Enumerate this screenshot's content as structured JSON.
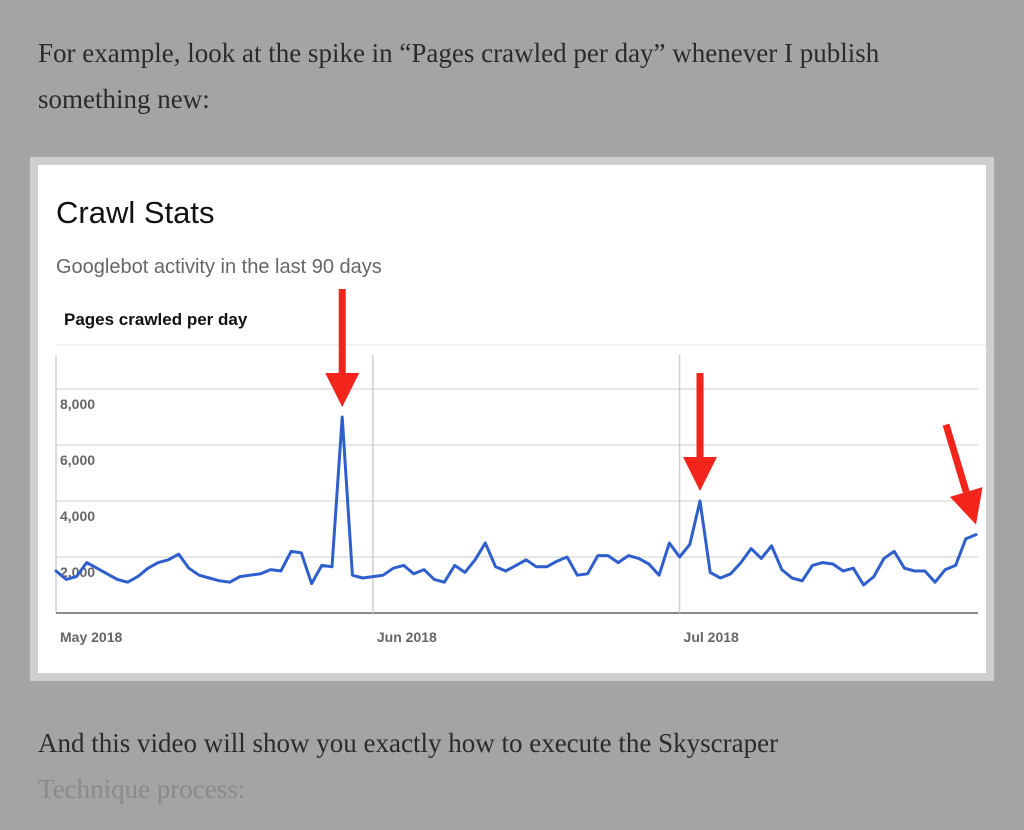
{
  "article": {
    "intro_text": "For example, look at the spike in “Pages crawled per day” whenever I publish something new:",
    "outro_text_main": "And this video will show you exactly how to execute the Skyscraper",
    "outro_text_faded": "Technique process:"
  },
  "colors": {
    "line": "#2f5fcc",
    "arrow": "#f2241c",
    "grid": "#cfcfcf",
    "axis": "#666666",
    "title": "#111111",
    "subtitle": "#666666"
  },
  "chart_data": {
    "type": "line",
    "title": "Crawl Stats",
    "subtitle": "Googlebot activity in the last 90 days",
    "chart_label": "Pages crawled per day",
    "y_ticks": [
      2000,
      4000,
      6000,
      8000
    ],
    "y_tick_labels": [
      "2,000",
      "4,000",
      "6,000",
      "8,000"
    ],
    "ylim": [
      0,
      8500
    ],
    "x_ticks": [
      {
        "label": "May 2018",
        "index": 0
      },
      {
        "label": "Jun 2018",
        "index": 31
      },
      {
        "label": "Jul 2018",
        "index": 61
      }
    ],
    "grid": true,
    "series": [
      {
        "values": [
          1500,
          1200,
          1300,
          1800,
          1600,
          1400,
          1200,
          1100,
          1300,
          1600,
          1800,
          1900,
          2100,
          1600,
          1350,
          1250,
          1150,
          1100,
          1300,
          1350,
          1400,
          1550,
          1500,
          2200,
          2150,
          1050,
          1700,
          1650,
          7000,
          1350,
          1250,
          1300,
          1350,
          1600,
          1700,
          1400,
          1550,
          1200,
          1100,
          1700,
          1450,
          1900,
          2500,
          1650,
          1500,
          1700,
          1900,
          1650,
          1650,
          1850,
          2000,
          1350,
          1400,
          2050,
          2050,
          1800,
          2050,
          1950,
          1750,
          1350,
          2500,
          2000,
          2450,
          4000,
          1450,
          1250,
          1400,
          1800,
          2300,
          1950,
          2400,
          1550,
          1250,
          1150,
          1700,
          1800,
          1750,
          1500,
          1600,
          1000,
          1300,
          1950,
          2200,
          1600,
          1500,
          1500,
          1100,
          1550,
          1700,
          2650,
          2800
        ]
      }
    ],
    "annotations": [
      {
        "type": "arrow",
        "target_index": 28
      },
      {
        "type": "arrow",
        "target_index": 63
      },
      {
        "type": "arrow",
        "target_index": 90
      }
    ]
  }
}
